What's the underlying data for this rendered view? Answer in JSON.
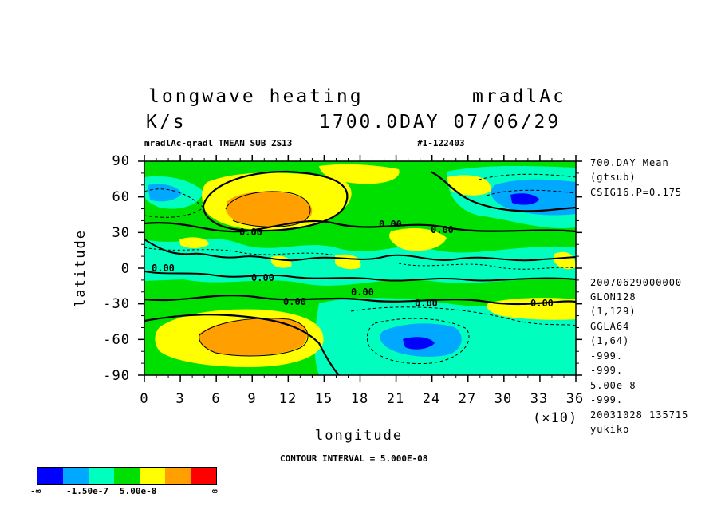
{
  "header": {
    "title_left": "longwave heating",
    "title_right": "mradlAc",
    "units": "K/s",
    "time": "1700.0DAY 07/06/29",
    "subtitle_left": "mradlAc-qradl TMEAN SUB ZS13",
    "subtitle_right": "#1-122403"
  },
  "side_info": {
    "top": [
      "700.DAY Mean",
      "(gtsub)",
      "CSIG16.P=0.175"
    ],
    "bottom": [
      "20070629000000",
      "GLON128",
      "(1,129)",
      "GGLA64",
      "(1,64)",
      "-999.",
      "-999.",
      "5.00e-8",
      "-999.",
      "20031028 135715",
      "yukiko"
    ]
  },
  "axes": {
    "xlabel": "longitude",
    "ylabel": "latitude",
    "x_multiplier": "(×10)",
    "xticks": [
      "0",
      "3",
      "6",
      "9",
      "12",
      "15",
      "18",
      "21",
      "24",
      "27",
      "30",
      "33",
      "36"
    ],
    "yticks": [
      "90",
      "60",
      "30",
      "0",
      "-30",
      "-60",
      "-90"
    ]
  },
  "contour_interval": "CONTOUR INTERVAL = 5.000E-08",
  "contour_labels": [
    "0.00",
    "0.00",
    "0.00",
    "0.00",
    "0.00",
    "0.00",
    "0.00",
    "0.00",
    "0.00"
  ],
  "colorbar": {
    "colors": [
      "#0000ff",
      "#00a8ff",
      "#00ffbe",
      "#00e000",
      "#ffff00",
      "#ffa000",
      "#ff0000"
    ],
    "labels": [
      "-∞",
      "-1.50e-7",
      "5.00e-8",
      "∞"
    ]
  },
  "chart_data": {
    "type": "heatmap",
    "title": "longwave heating",
    "units": "K/s",
    "xlabel": "longitude",
    "ylabel": "latitude",
    "xlim": [
      0,
      360
    ],
    "ylim": [
      -90,
      90
    ],
    "x_ticks": [
      0,
      30,
      60,
      90,
      120,
      150,
      180,
      210,
      240,
      270,
      300,
      330,
      360
    ],
    "y_ticks": [
      90,
      60,
      30,
      0,
      -30,
      -60,
      -90
    ],
    "contour_interval": 5e-08,
    "features": [
      {
        "lon": 100,
        "lat": 50,
        "level": "orange (positive maximum)"
      },
      {
        "lon": 100,
        "lat": -55,
        "level": "orange (positive maximum)"
      },
      {
        "lon": 360,
        "lat": 60,
        "level": "blue (negative minimum)"
      },
      {
        "lon": 240,
        "lat": -60,
        "level": "blue (negative minimum)"
      },
      {
        "lon": 10,
        "lat": 60,
        "level": "light blue (negative)"
      }
    ]
  }
}
